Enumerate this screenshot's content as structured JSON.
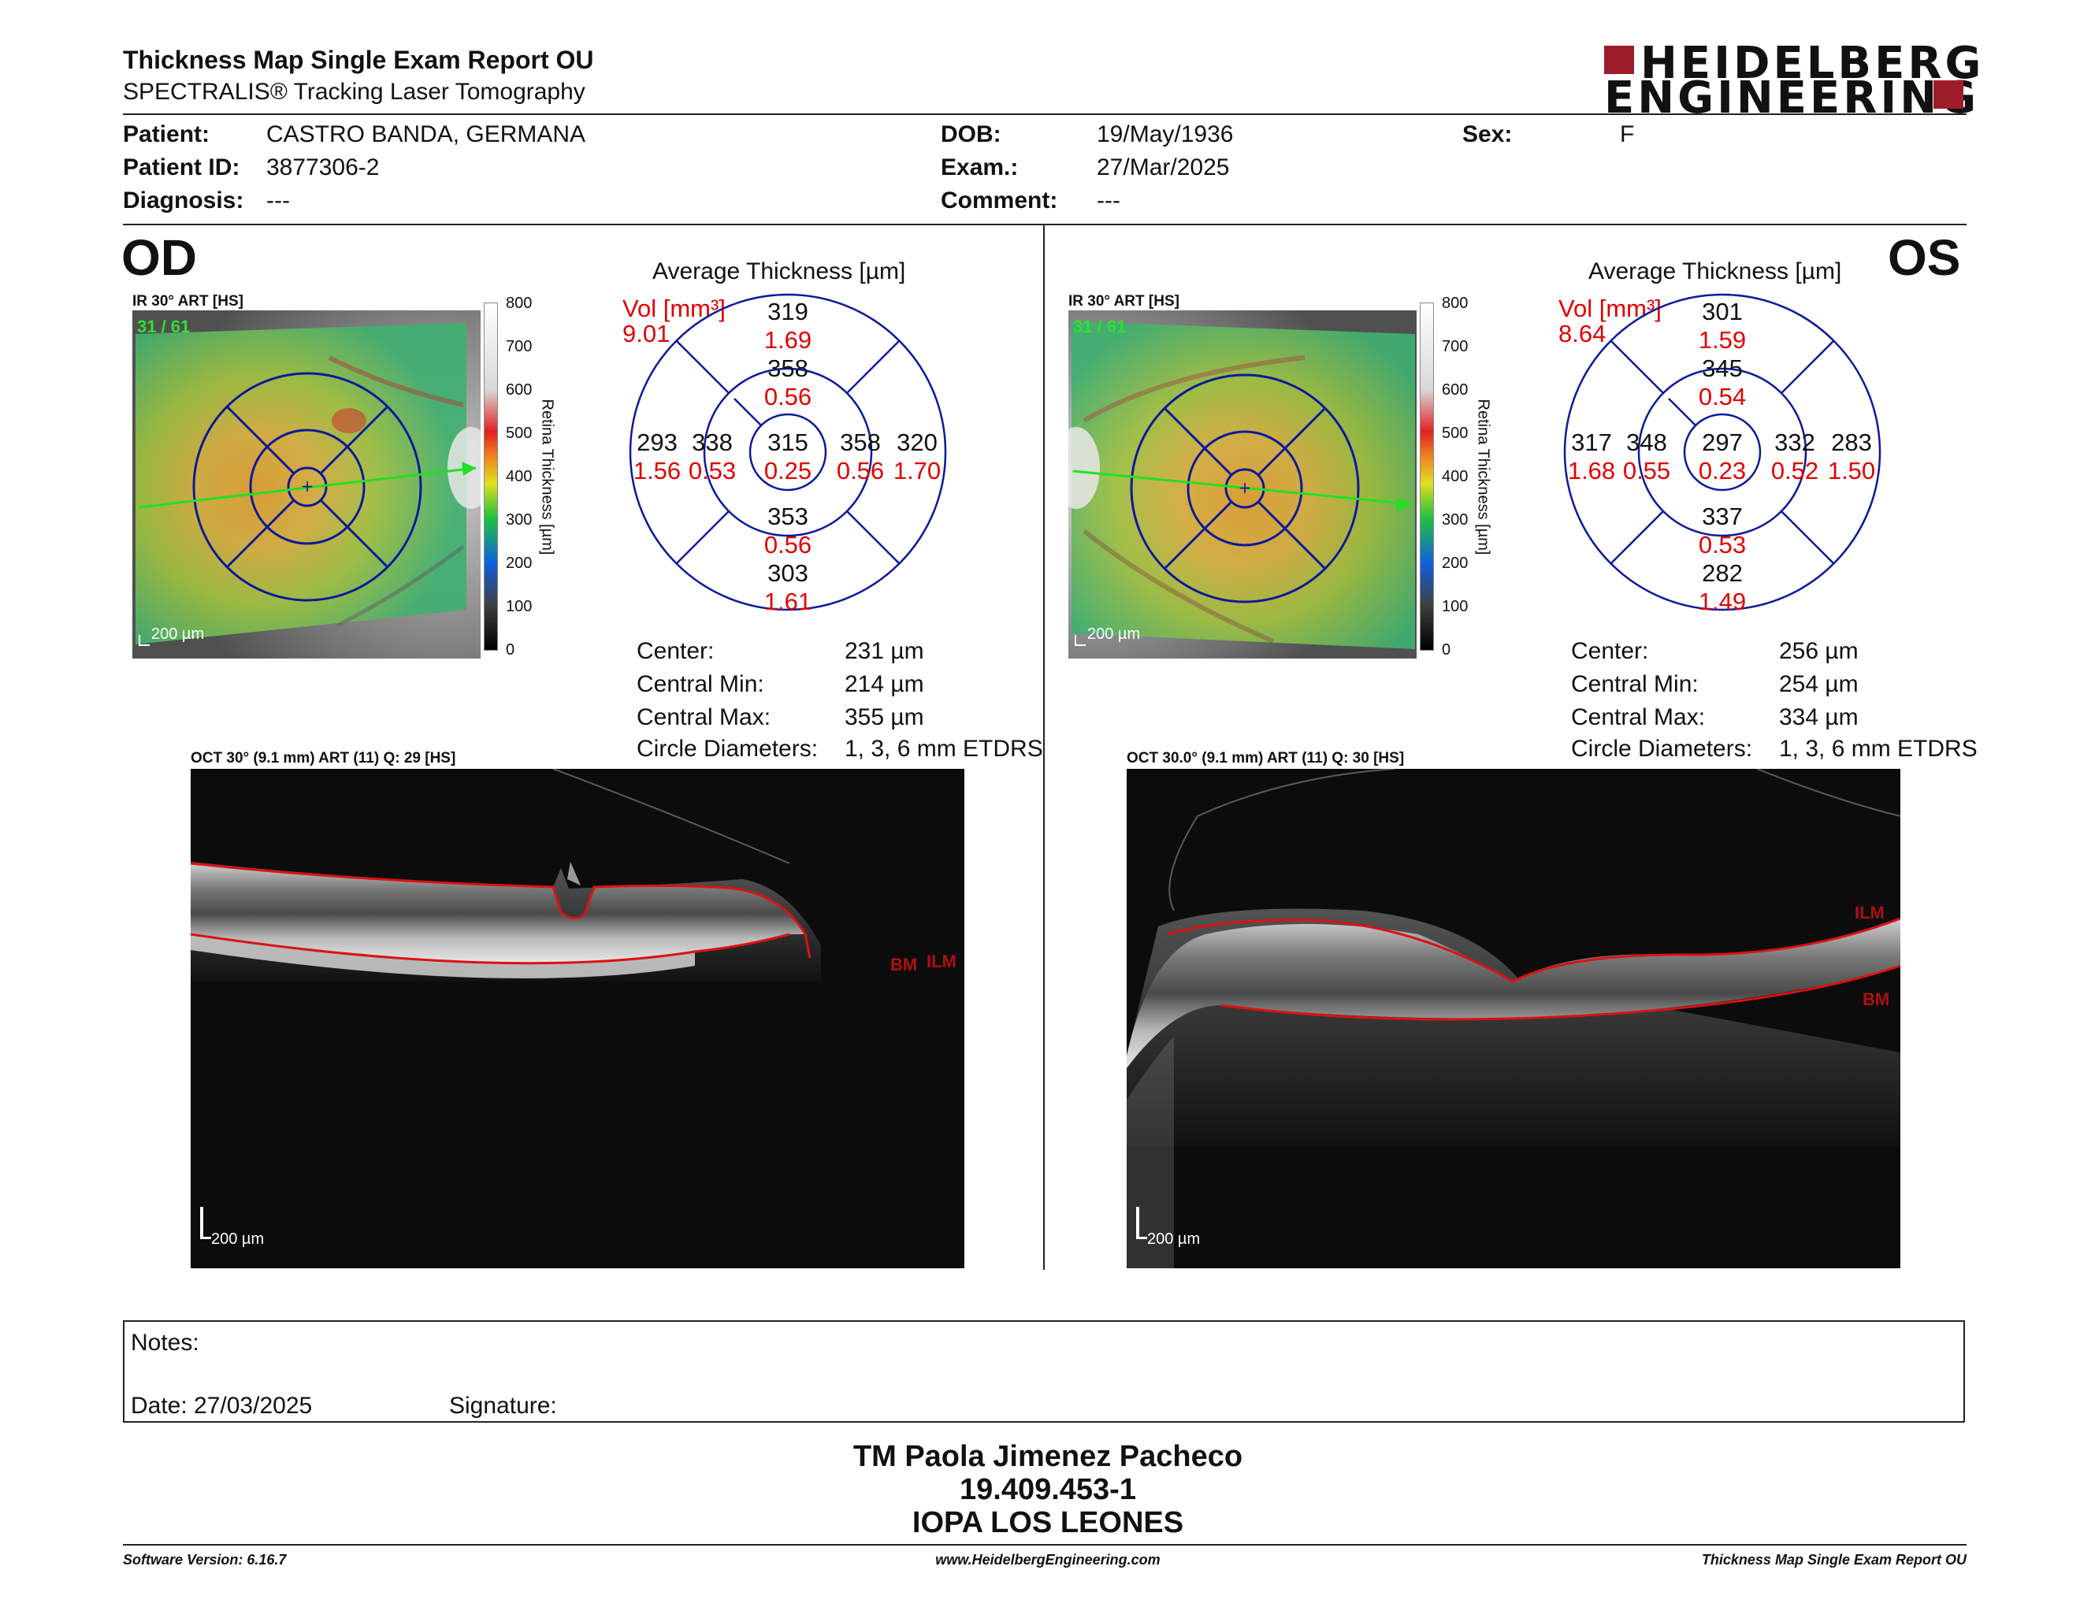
{
  "header": {
    "title": "Thickness Map Single Exam Report OU",
    "subtitle": "SPECTRALIS® Tracking Laser Tomography",
    "logo_line1": "HEIDELBERG",
    "logo_line2": "ENGINEERING",
    "brand_color": "#9e1b2c"
  },
  "patient": {
    "patient_label": "Patient:",
    "patient_value": "CASTRO BANDA, GERMANA",
    "id_label": "Patient ID:",
    "id_value": "3877306-2",
    "diagnosis_label": "Diagnosis:",
    "diagnosis_value": "---",
    "dob_label": "DOB:",
    "dob_value": "19/May/1936",
    "exam_label": "Exam.:",
    "exam_value": "27/Mar/2025",
    "comment_label": "Comment:",
    "comment_value": "---",
    "sex_label": "Sex:",
    "sex_value": "F"
  },
  "od": {
    "eye": "OD",
    "ir_label": "IR 30° ART [HS]",
    "frames": "31 / 61",
    "scale": "200 µm",
    "colorbar_ticks": [
      "800",
      "700",
      "600",
      "500",
      "400",
      "300",
      "200",
      "100",
      "0"
    ],
    "colorbar_label": "Retina Thickness [µm]",
    "avg_title": "Average Thickness [µm]",
    "vol_label": "Vol [mm³]",
    "vol_value": "9.01",
    "etdrs": {
      "outer_sup": {
        "t": "319",
        "v": "1.69"
      },
      "inner_sup": {
        "t": "358",
        "v": "0.56"
      },
      "outer_temp": {
        "t": "293",
        "v": "1.56"
      },
      "inner_temp": {
        "t": "338",
        "v": "0.53"
      },
      "center": {
        "t": "315",
        "v": "0.25"
      },
      "inner_nasal": {
        "t": "358",
        "v": "0.56"
      },
      "outer_nasal": {
        "t": "320",
        "v": "1.70"
      },
      "inner_inf": {
        "t": "353",
        "v": "0.56"
      },
      "outer_inf": {
        "t": "303",
        "v": "1.61"
      }
    },
    "stats": {
      "center_label": "Center:",
      "center_value": "231 µm",
      "min_label": "Central Min:",
      "min_value": "214 µm",
      "max_label": "Central Max:",
      "max_value": "355 µm",
      "circ_label": "Circle Diameters:",
      "circ_value": "1, 3, 6 mm ETDRS"
    },
    "oct_label": "OCT 30° (9.1 mm) ART (11) Q: 29 [HS]",
    "oct_scale": "200 µm",
    "ilm": "ILM",
    "bm": "BM"
  },
  "os": {
    "eye": "OS",
    "ir_label": "IR 30° ART [HS]",
    "frames": "31 / 61",
    "scale": "200 µm",
    "colorbar_ticks": [
      "800",
      "700",
      "600",
      "500",
      "400",
      "300",
      "200",
      "100",
      "0"
    ],
    "colorbar_label": "Retina Thickness [µm]",
    "avg_title": "Average Thickness [µm]",
    "vol_label": "Vol [mm³]",
    "vol_value": "8.64",
    "etdrs": {
      "outer_sup": {
        "t": "301",
        "v": "1.59"
      },
      "inner_sup": {
        "t": "345",
        "v": "0.54"
      },
      "outer_temp": {
        "t": "317",
        "v": "1.68"
      },
      "inner_temp": {
        "t": "348",
        "v": "0.55"
      },
      "center": {
        "t": "297",
        "v": "0.23"
      },
      "inner_nasal": {
        "t": "332",
        "v": "0.52"
      },
      "outer_nasal": {
        "t": "283",
        "v": "1.50"
      },
      "inner_inf": {
        "t": "337",
        "v": "0.53"
      },
      "outer_inf": {
        "t": "282",
        "v": "1.49"
      }
    },
    "stats": {
      "center_label": "Center:",
      "center_value": "256 µm",
      "min_label": "Central Min:",
      "min_value": "254 µm",
      "max_label": "Central Max:",
      "max_value": "334 µm",
      "circ_label": "Circle Diameters:",
      "circ_value": "1, 3, 6 mm ETDRS"
    },
    "oct_label": "OCT 30.0° (9.1 mm) ART (11) Q: 30 [HS]",
    "oct_scale": "200 µm",
    "ilm": "ILM",
    "bm": "BM"
  },
  "notes": {
    "notes_label": "Notes:",
    "date_label": "Date: 27/03/2025",
    "signature_label": "Signature:"
  },
  "signer": {
    "name": "TM Paola Jimenez Pacheco",
    "rut": "19.409.453-1",
    "org": "IOPA LOS LEONES"
  },
  "footer": {
    "software": "Software Version: 6.16.7",
    "website": "www.HeidelbergEngineering.com",
    "report": "Thickness Map Single Exam Report OU"
  }
}
